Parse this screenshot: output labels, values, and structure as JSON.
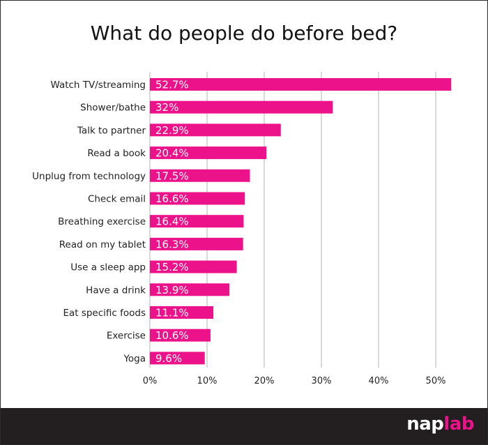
{
  "chart_data": {
    "type": "bar",
    "orientation": "horizontal",
    "title": "What do people do before bed?",
    "categories": [
      "Watch TV/streaming",
      "Shower/bathe",
      "Talk to partner",
      "Read a book",
      "Unplug from technology",
      "Check email",
      "Breathing exercise",
      "Read on my tablet",
      "Use a sleep app",
      "Have a drink",
      "Eat specific foods",
      "Exercise",
      "Yoga"
    ],
    "values": [
      52.7,
      32,
      22.9,
      20.4,
      17.5,
      16.6,
      16.4,
      16.3,
      15.2,
      13.9,
      11.1,
      10.6,
      9.6
    ],
    "value_labels": [
      "52.7%",
      "32%",
      "22.9%",
      "20.4%",
      "17.5%",
      "16.6%",
      "16.4%",
      "16.3%",
      "15.2%",
      "13.9%",
      "11.1%",
      "10.6%",
      "9.6%"
    ],
    "x_ticks": [
      "0%",
      "10%",
      "20%",
      "30%",
      "40%",
      "50%"
    ],
    "xlim": [
      0,
      52
    ],
    "grid": true,
    "bar_color": "#ec1289",
    "grid_color": "#b3b3b3"
  },
  "footer": {
    "logo_part1": "nap",
    "logo_part2": "lab",
    "background": "#231f20",
    "accent": "#ec1289"
  }
}
